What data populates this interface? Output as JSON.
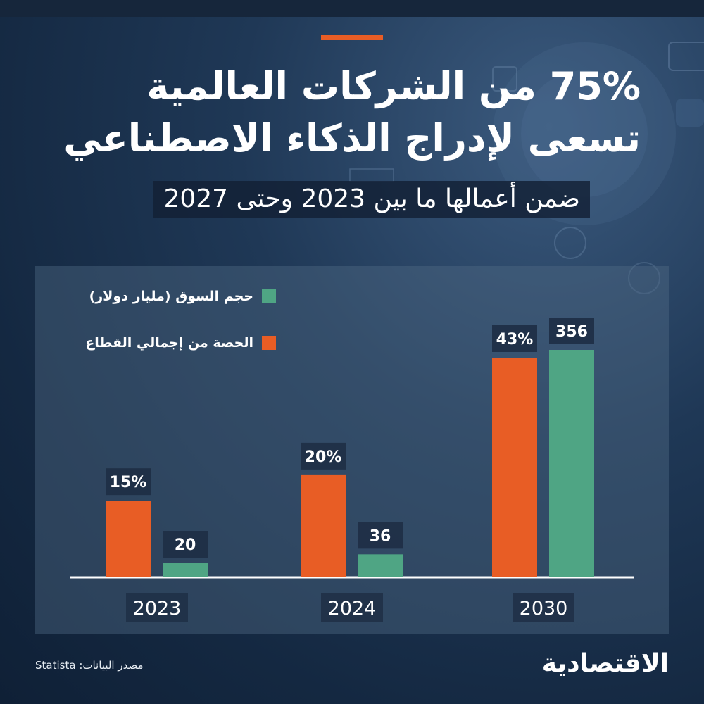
{
  "header": {
    "title_line1": "75% من الشركات العالمية",
    "title_line2": "تسعى لإدراج الذكاء الاصطناعي",
    "subtitle": "ضمن أعمالها ما بين 2023 وحتى 2027"
  },
  "chart_data": {
    "type": "bar",
    "categories": [
      "2023",
      "2024",
      "2030"
    ],
    "series": [
      {
        "name": "الحصة من إجمالي القطاع",
        "values": [
          15,
          20,
          43
        ],
        "labels": [
          "15%",
          "20%",
          "43%"
        ],
        "color": "#e85d25"
      },
      {
        "name": "حجم السوق (مليار دولار)",
        "values": [
          20,
          36,
          356
        ],
        "labels": [
          "20",
          "36",
          "356"
        ],
        "color": "#4fa584"
      }
    ],
    "legend_position": "top-left",
    "grid": false
  },
  "footer": {
    "source": "مصدر البيانات: Statista",
    "logo": "الاقتصادية"
  }
}
